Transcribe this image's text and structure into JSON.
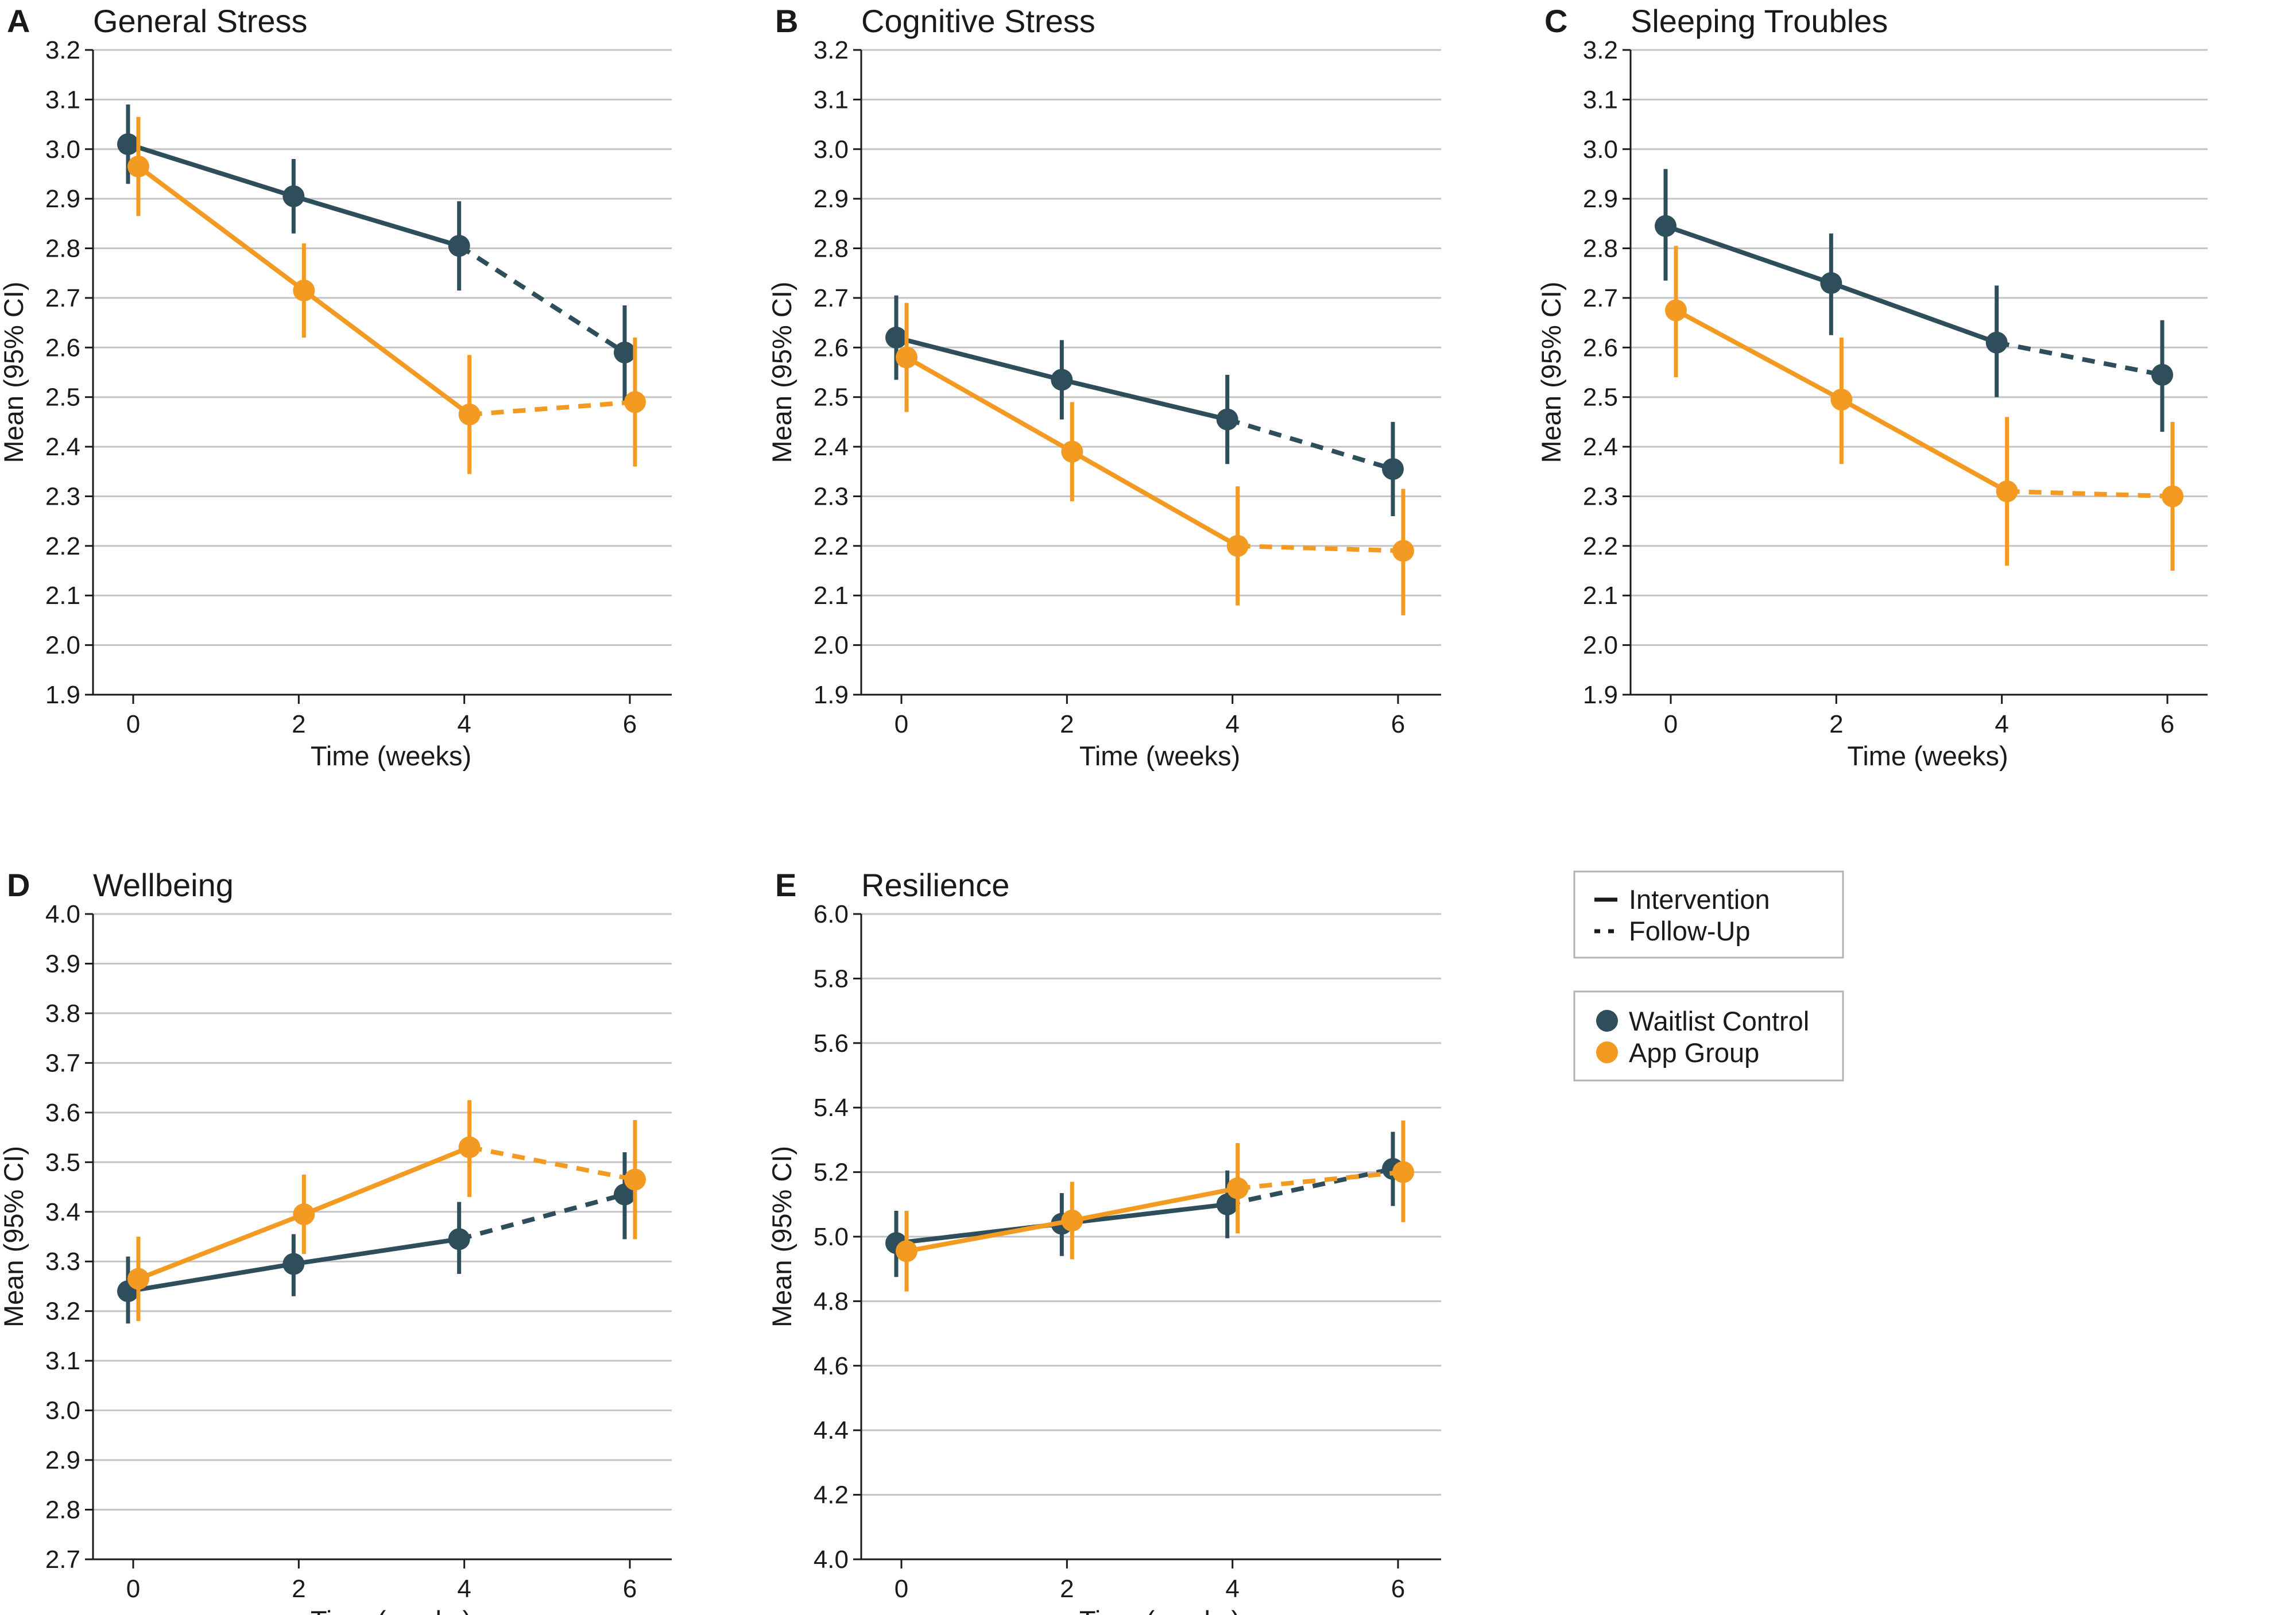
{
  "legend": {
    "line_styles": [
      {
        "label": "Intervention",
        "style": "solid"
      },
      {
        "label": "Follow-Up",
        "style": "dashed"
      }
    ],
    "groups": [
      {
        "label": "Waitlist Control",
        "color": "#2e4e5c"
      },
      {
        "label": "App Group",
        "color": "#f39a22"
      }
    ]
  },
  "chart_data": [
    {
      "letter": "A",
      "title": "General Stress",
      "type": "line",
      "xlabel": "Time (weeks)",
      "ylabel": "Mean (95% CI)",
      "x": [
        0,
        2,
        4,
        6
      ],
      "ylim": [
        1.9,
        3.2
      ],
      "yticks": [
        "1.9",
        "2.0",
        "2.1",
        "2.2",
        "2.3",
        "2.4",
        "2.5",
        "2.6",
        "2.7",
        "2.8",
        "2.9",
        "3.0",
        "3.1",
        "3.2"
      ],
      "xticks": [
        "0",
        "2",
        "4",
        "6"
      ],
      "series": [
        {
          "name": "Waitlist Control",
          "color": "#2e4e5c",
          "values": [
            3.01,
            2.905,
            2.805,
            2.59
          ],
          "ci_low": [
            2.93,
            2.83,
            2.715,
            2.49
          ],
          "ci_high": [
            3.09,
            2.98,
            2.895,
            2.685
          ]
        },
        {
          "name": "App Group",
          "color": "#f39a22",
          "values": [
            2.965,
            2.715,
            2.465,
            2.49
          ],
          "ci_low": [
            2.865,
            2.62,
            2.345,
            2.36
          ],
          "ci_high": [
            3.065,
            2.81,
            2.585,
            2.62
          ]
        }
      ]
    },
    {
      "letter": "B",
      "title": "Cognitive Stress",
      "type": "line",
      "xlabel": "Time (weeks)",
      "ylabel": "Mean (95% CI)",
      "x": [
        0,
        2,
        4,
        6
      ],
      "ylim": [
        1.9,
        3.2
      ],
      "yticks": [
        "1.9",
        "2.0",
        "2.1",
        "2.2",
        "2.3",
        "2.4",
        "2.5",
        "2.6",
        "2.7",
        "2.8",
        "2.9",
        "3.0",
        "3.1",
        "3.2"
      ],
      "xticks": [
        "0",
        "2",
        "4",
        "6"
      ],
      "series": [
        {
          "name": "Waitlist Control",
          "color": "#2e4e5c",
          "values": [
            2.62,
            2.535,
            2.455,
            2.355
          ],
          "ci_low": [
            2.535,
            2.455,
            2.365,
            2.26
          ],
          "ci_high": [
            2.705,
            2.615,
            2.545,
            2.45
          ]
        },
        {
          "name": "App Group",
          "color": "#f39a22",
          "values": [
            2.58,
            2.39,
            2.2,
            2.19
          ],
          "ci_low": [
            2.47,
            2.29,
            2.08,
            2.06
          ],
          "ci_high": [
            2.69,
            2.49,
            2.32,
            2.315
          ]
        }
      ]
    },
    {
      "letter": "C",
      "title": "Sleeping Troubles",
      "type": "line",
      "xlabel": "Time (weeks)",
      "ylabel": "Mean (95% CI)",
      "x": [
        0,
        2,
        4,
        6
      ],
      "ylim": [
        1.9,
        3.2
      ],
      "yticks": [
        "1.9",
        "2.0",
        "2.1",
        "2.2",
        "2.3",
        "2.4",
        "2.5",
        "2.6",
        "2.7",
        "2.8",
        "2.9",
        "3.0",
        "3.1",
        "3.2"
      ],
      "xticks": [
        "0",
        "2",
        "4",
        "6"
      ],
      "series": [
        {
          "name": "Waitlist Control",
          "color": "#2e4e5c",
          "values": [
            2.845,
            2.73,
            2.61,
            2.545
          ],
          "ci_low": [
            2.735,
            2.625,
            2.5,
            2.43
          ],
          "ci_high": [
            2.96,
            2.83,
            2.725,
            2.655
          ]
        },
        {
          "name": "App Group",
          "color": "#f39a22",
          "values": [
            2.675,
            2.495,
            2.31,
            2.3
          ],
          "ci_low": [
            2.54,
            2.365,
            2.16,
            2.15
          ],
          "ci_high": [
            2.805,
            2.62,
            2.46,
            2.45
          ]
        }
      ]
    },
    {
      "letter": "D",
      "title": "Wellbeing",
      "type": "line",
      "xlabel": "Time (weeks)",
      "ylabel": "Mean (95% CI)",
      "x": [
        0,
        2,
        4,
        6
      ],
      "ylim": [
        2.7,
        4.0
      ],
      "yticks": [
        "2.7",
        "2.8",
        "2.9",
        "3.0",
        "3.1",
        "3.2",
        "3.3",
        "3.4",
        "3.5",
        "3.6",
        "3.7",
        "3.8",
        "3.9",
        "4.0"
      ],
      "xticks": [
        "0",
        "2",
        "4",
        "6"
      ],
      "series": [
        {
          "name": "Waitlist Control",
          "color": "#2e4e5c",
          "values": [
            3.24,
            3.295,
            3.345,
            3.435
          ],
          "ci_low": [
            3.175,
            3.23,
            3.275,
            3.345
          ],
          "ci_high": [
            3.31,
            3.355,
            3.42,
            3.52
          ]
        },
        {
          "name": "App Group",
          "color": "#f39a22",
          "values": [
            3.265,
            3.395,
            3.53,
            3.465
          ],
          "ci_low": [
            3.18,
            3.315,
            3.43,
            3.345
          ],
          "ci_high": [
            3.35,
            3.475,
            3.625,
            3.585
          ]
        }
      ]
    },
    {
      "letter": "E",
      "title": "Resilience",
      "type": "line",
      "xlabel": "Time (weeks)",
      "ylabel": "Mean (95% CI)",
      "x": [
        0,
        2,
        4,
        6
      ],
      "ylim": [
        4.0,
        6.0
      ],
      "yticks": [
        "4.0",
        "4.2",
        "4.4",
        "4.6",
        "4.8",
        "5.0",
        "5.2",
        "5.4",
        "5.6",
        "5.8",
        "6.0"
      ],
      "xticks": [
        "0",
        "2",
        "4",
        "6"
      ],
      "series": [
        {
          "name": "Waitlist Control",
          "color": "#2e4e5c",
          "values": [
            4.98,
            5.04,
            5.1,
            5.21
          ],
          "ci_low": [
            4.875,
            4.94,
            4.995,
            5.095
          ],
          "ci_high": [
            5.08,
            5.135,
            5.205,
            5.325
          ]
        },
        {
          "name": "App Group",
          "color": "#f39a22",
          "values": [
            4.955,
            5.05,
            5.15,
            5.2
          ],
          "ci_low": [
            4.83,
            4.93,
            5.01,
            5.045
          ],
          "ci_high": [
            5.08,
            5.17,
            5.29,
            5.36
          ]
        }
      ]
    }
  ]
}
